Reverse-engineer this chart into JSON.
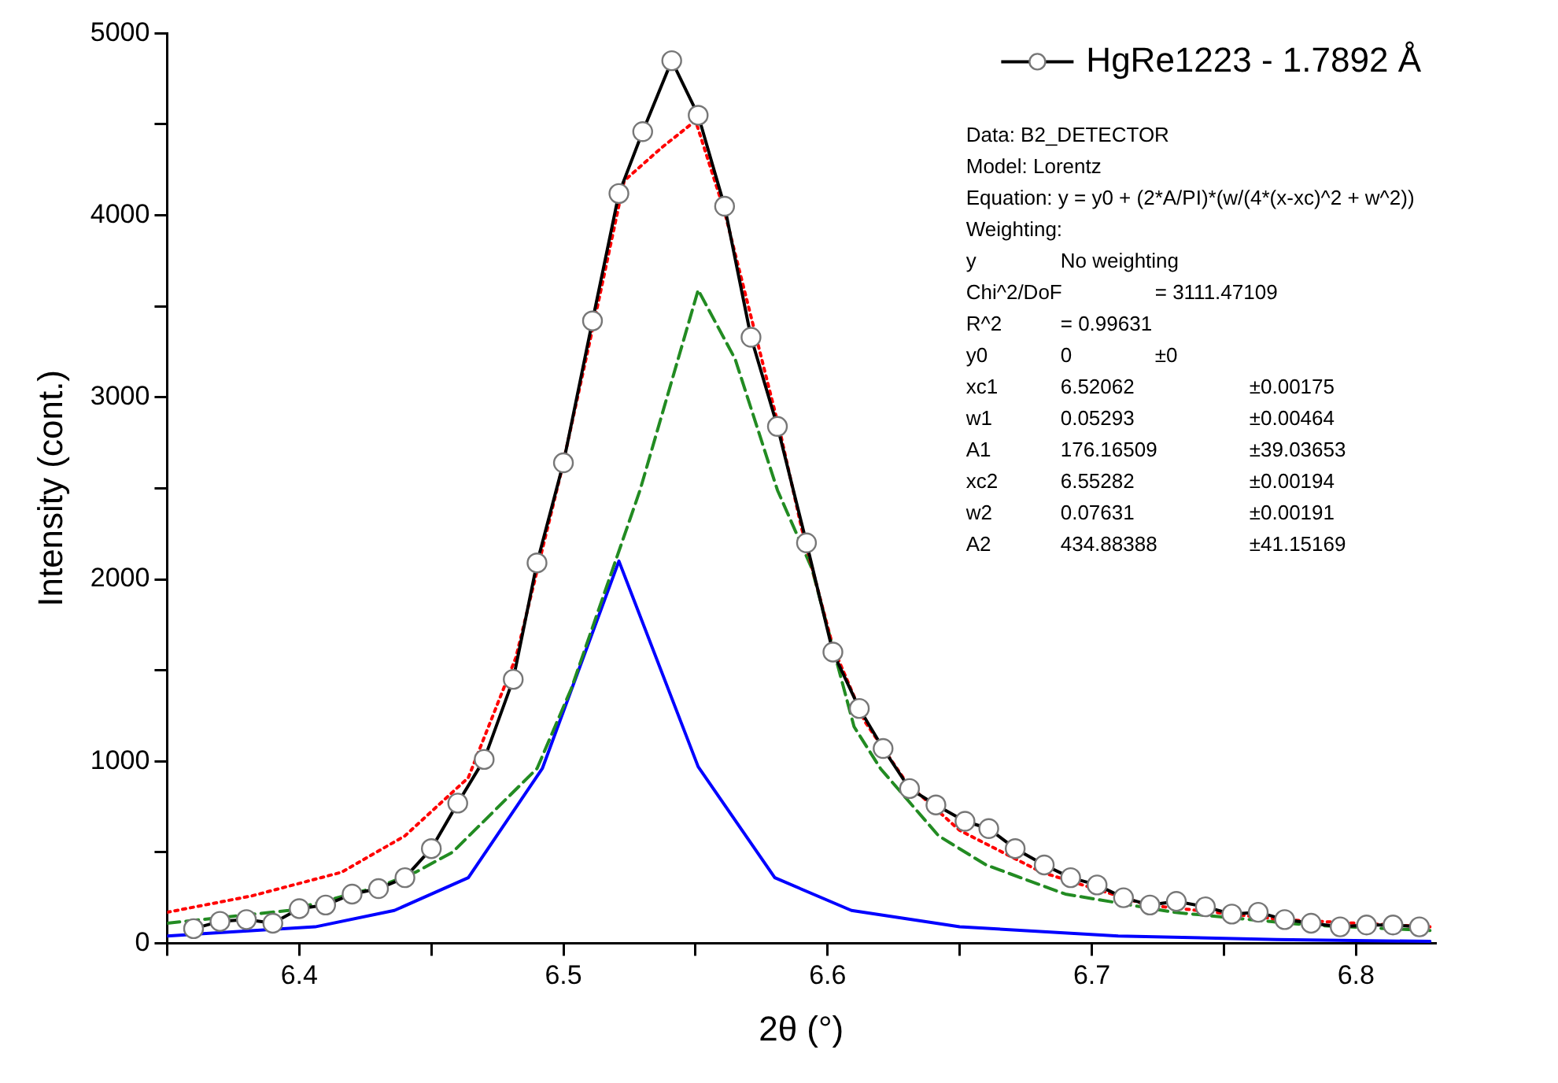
{
  "chart_data": {
    "type": "line",
    "xlabel": "2θ (°)",
    "ylabel": "Intensity (cont.)",
    "xlim": [
      6.35,
      6.83
    ],
    "ylim": [
      0,
      5000
    ],
    "xticks": [
      {
        "value": 6.35,
        "label": null
      },
      6.4,
      {
        "value": 6.45,
        "label": null
      },
      6.5,
      {
        "value": 6.55,
        "label": null
      },
      6.6,
      {
        "value": 6.65,
        "label": null
      },
      6.7,
      {
        "value": 6.75,
        "label": null
      },
      6.8
    ],
    "yticks": [
      0,
      {
        "value": 500,
        "label": null
      },
      1000,
      {
        "value": 1500,
        "label": null
      },
      2000,
      {
        "value": 2500,
        "label": null
      },
      3000,
      {
        "value": 3500,
        "label": null
      },
      4000,
      {
        "value": 4500,
        "label": null
      },
      5000
    ],
    "grid": false,
    "legend": "top right",
    "series": [
      {
        "name": "HgRe1223 - 1.7892 Å",
        "type": "line",
        "color": "#000000",
        "marker": "circle",
        "line_style": "solid",
        "x": [
          6.36,
          6.37,
          6.38,
          6.39,
          6.4,
          6.41,
          6.42,
          6.43,
          6.44,
          6.45,
          6.46,
          6.47,
          6.481,
          6.49,
          6.5,
          6.511,
          6.521,
          6.53,
          6.541,
          6.551,
          6.561,
          6.571,
          6.581,
          6.592,
          6.602,
          6.612,
          6.621,
          6.631,
          6.641,
          6.652,
          6.661,
          6.671,
          6.682,
          6.692,
          6.702,
          6.712,
          6.722,
          6.732,
          6.743,
          6.753,
          6.763,
          6.773,
          6.783,
          6.794,
          6.804,
          6.814,
          6.824
        ],
        "values": [
          80,
          120,
          130,
          110,
          190,
          210,
          270,
          300,
          360,
          520,
          770,
          1010,
          1450,
          2090,
          2640,
          3420,
          4120,
          4460,
          4850,
          4550,
          4050,
          3330,
          2840,
          2200,
          1600,
          1290,
          1070,
          850,
          760,
          670,
          630,
          520,
          430,
          360,
          320,
          250,
          210,
          230,
          200,
          160,
          170,
          130,
          110,
          90,
          100,
          100,
          90
        ]
      },
      {
        "type": "line",
        "color": "#ff0000",
        "marker": "none",
        "line_style": "dotted",
        "x": [
          6.35,
          6.382,
          6.416,
          6.44,
          6.464,
          6.482,
          6.499,
          6.512,
          6.523,
          6.537,
          6.55,
          6.561,
          6.582,
          6.59,
          6.602,
          6.614,
          6.63,
          6.65,
          6.681,
          6.721,
          6.772,
          6.828
        ],
        "values": [
          170,
          260,
          390,
          590,
          910,
          1570,
          2580,
          3440,
          4190,
          4370,
          4520,
          4020,
          2810,
          2290,
          1630,
          1220,
          880,
          620,
          390,
          210,
          130,
          90
        ]
      },
      {
        "type": "line",
        "color": "#228b22",
        "marker": "none",
        "line_style": "dashed",
        "x": [
          6.35,
          6.396,
          6.43,
          6.444,
          6.458,
          6.49,
          6.503,
          6.529,
          6.551,
          6.565,
          6.581,
          6.594,
          6.61,
          6.62,
          6.642,
          6.66,
          6.69,
          6.731,
          6.782,
          6.828
        ],
        "values": [
          110,
          180,
          310,
          390,
          500,
          960,
          1400,
          2490,
          3590,
          3210,
          2490,
          2060,
          1190,
          960,
          590,
          430,
          270,
          170,
          100,
          70
        ]
      },
      {
        "type": "line",
        "color": "#0000ff",
        "marker": "none",
        "line_style": "solid",
        "x": [
          6.35,
          6.406,
          6.436,
          6.464,
          6.492,
          6.521,
          6.551,
          6.58,
          6.609,
          6.65,
          6.71,
          6.77,
          6.828
        ],
        "values": [
          40,
          90,
          180,
          360,
          960,
          2100,
          970,
          360,
          180,
          90,
          40,
          20,
          10
        ]
      }
    ],
    "annotations": [
      "Data: B2_DETECTOR",
      "Model: Lorentz",
      "Equation: y = y0 + (2*A/PI)*(w/(4*(x-xc)^2 + w^2))",
      "Weighting:",
      "y\tNo weighting",
      "Chi^2/DoF\t= 3111.47109",
      "R^2\t= 0.99631",
      "y0\t0\t±0",
      "xc1\t6.52062\t\t±0.00175",
      "w1\t0.05293\t\t±0.00464",
      "A1\t176.16509\t±39.03653",
      "xc2\t6.55282\t\t±0.00194",
      "w2\t0.07631\t\t±0.00191",
      "A2\t434.88388\t±41.15169"
    ]
  }
}
